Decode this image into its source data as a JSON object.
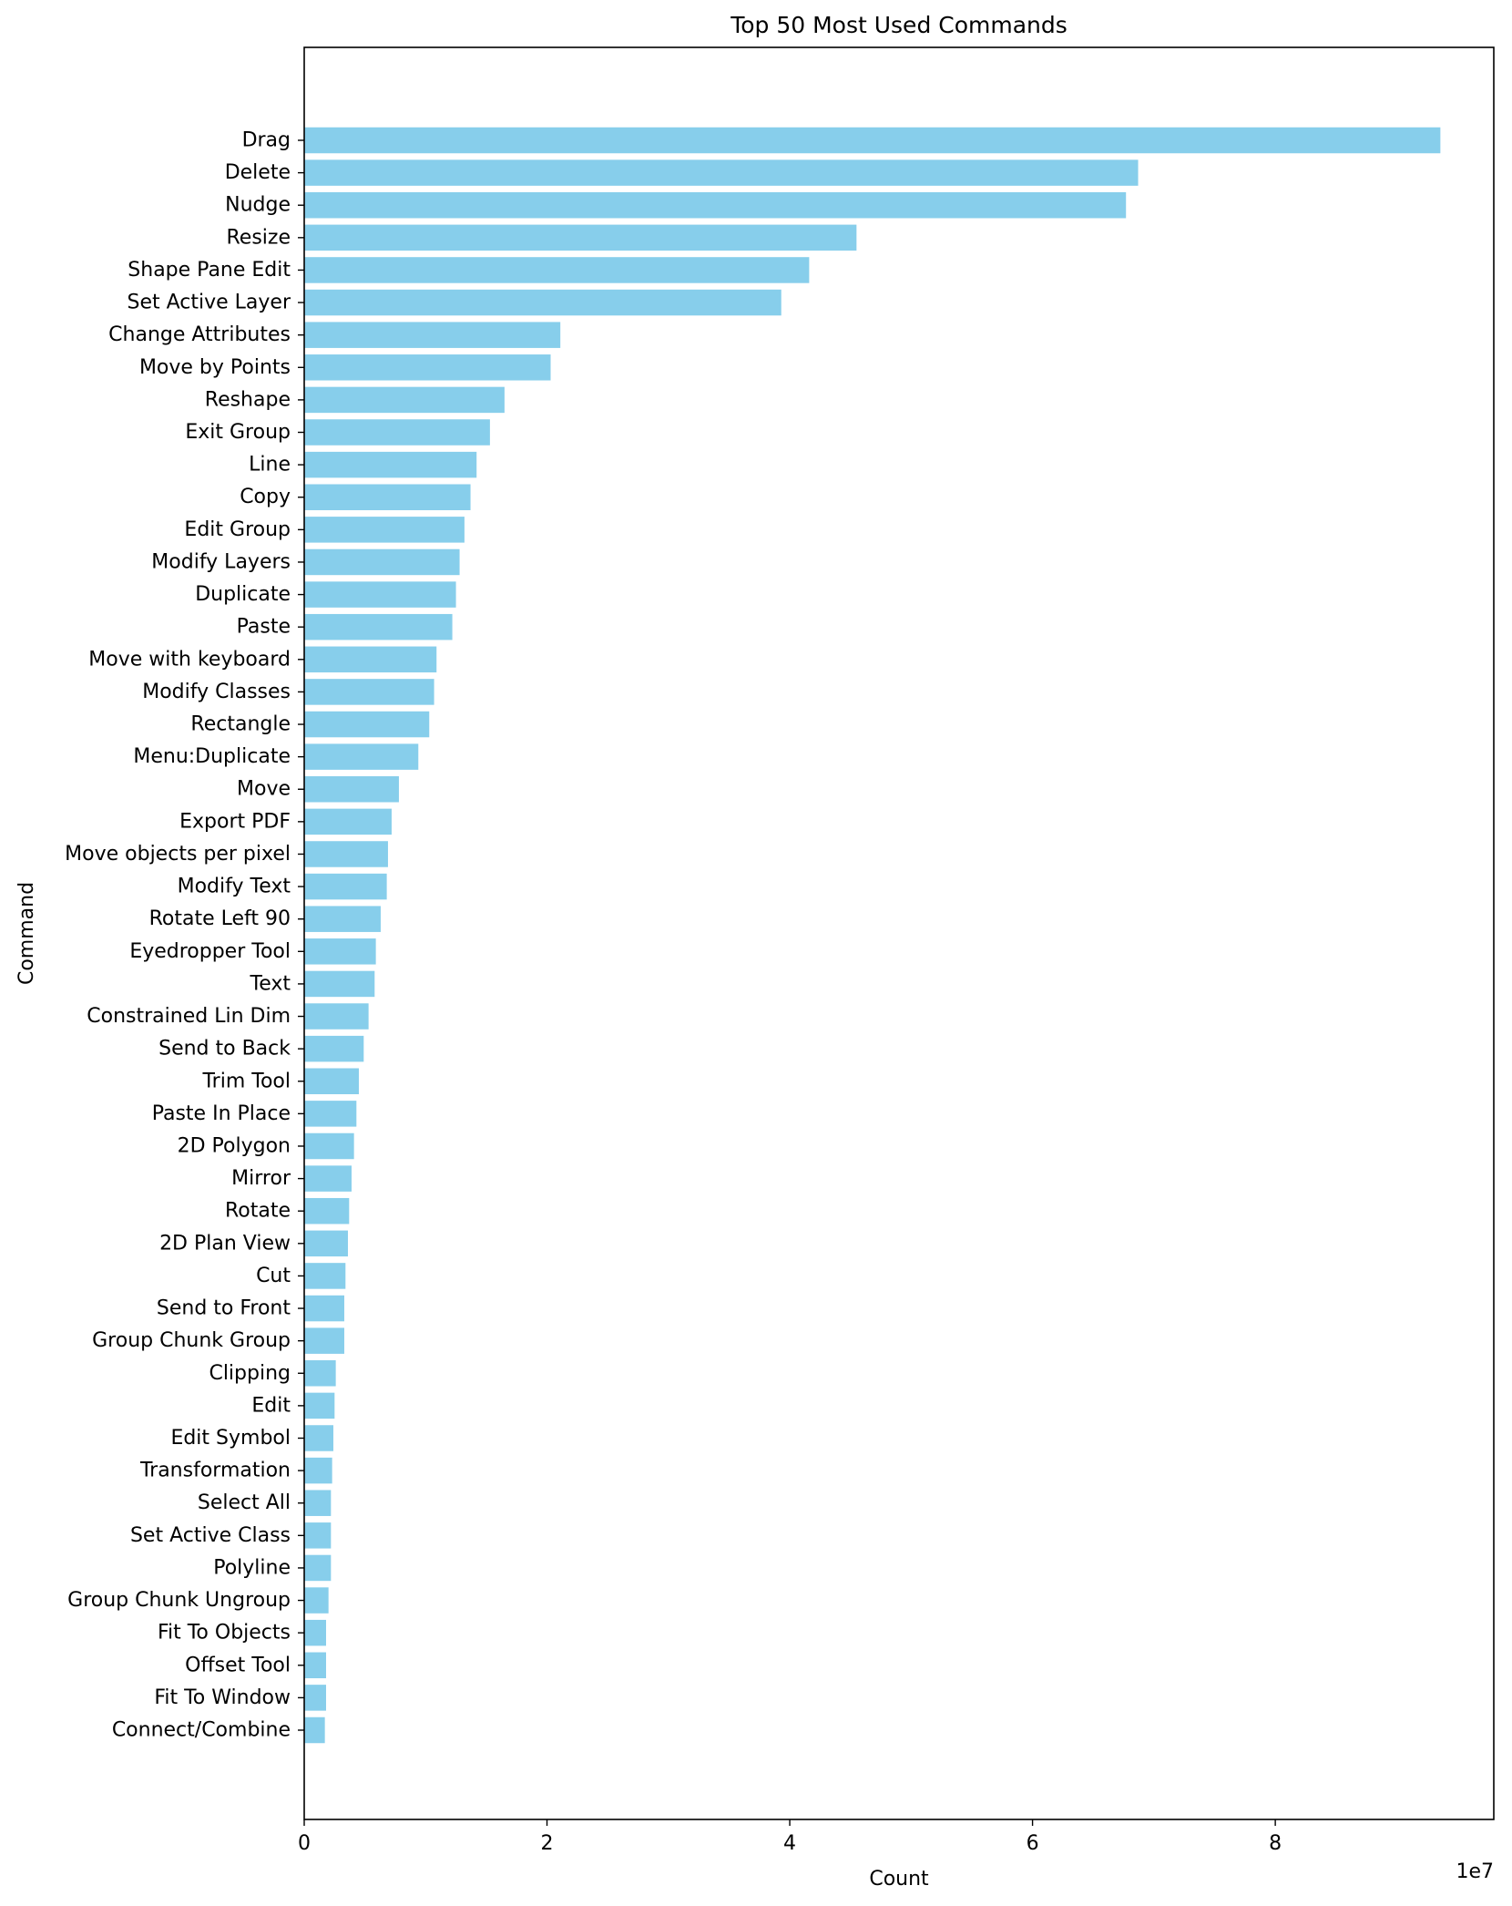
{
  "chart_data": {
    "type": "bar",
    "orientation": "horizontal",
    "title": "Top 50 Most Used Commands",
    "xlabel": "Count",
    "ylabel": "Command",
    "x_offset_label": "1e7",
    "x_ticks": [
      0,
      2,
      4,
      6,
      8
    ],
    "xlim": [
      0,
      9.8
    ],
    "x_scale_multiplier": 10000000,
    "grid": false,
    "legend": false,
    "bar_color": "#87CEEB",
    "categories": [
      "Drag",
      "Delete",
      "Nudge",
      "Resize",
      "Shape Pane Edit",
      "Set Active Layer",
      "Change Attributes",
      "Move by Points",
      "Reshape",
      "Exit Group",
      "Line",
      "Copy",
      "Edit Group",
      "Modify Layers",
      "Duplicate",
      "Paste",
      "Move with keyboard",
      "Modify Classes",
      "Rectangle",
      "Menu:Duplicate",
      "Move",
      "Export PDF",
      "Move objects per pixel",
      "Modify Text",
      "Rotate Left 90",
      "Eyedropper Tool",
      "Text",
      "Constrained Lin Dim",
      "Send to Back",
      "Trim Tool",
      "Paste In Place",
      "2D Polygon",
      "Mirror",
      "Rotate",
      "2D Plan View",
      "Cut",
      "Send to Front",
      "Group Chunk  Group",
      "Clipping",
      "Edit",
      "Edit Symbol",
      "Transformation",
      "Select All",
      "Set Active Class",
      "Polyline",
      "Group Chunk  Ungroup",
      "Fit To Objects",
      "Offset Tool",
      "Fit To Window",
      "Connect/Combine"
    ],
    "values": [
      9.36,
      6.87,
      6.77,
      4.55,
      4.16,
      3.93,
      2.11,
      2.03,
      1.65,
      1.53,
      1.42,
      1.37,
      1.32,
      1.28,
      1.25,
      1.22,
      1.09,
      1.07,
      1.03,
      0.94,
      0.78,
      0.72,
      0.69,
      0.68,
      0.63,
      0.59,
      0.58,
      0.53,
      0.49,
      0.45,
      0.43,
      0.41,
      0.39,
      0.37,
      0.36,
      0.34,
      0.33,
      0.33,
      0.26,
      0.25,
      0.24,
      0.23,
      0.22,
      0.22,
      0.22,
      0.2,
      0.18,
      0.18,
      0.18,
      0.17
    ]
  }
}
